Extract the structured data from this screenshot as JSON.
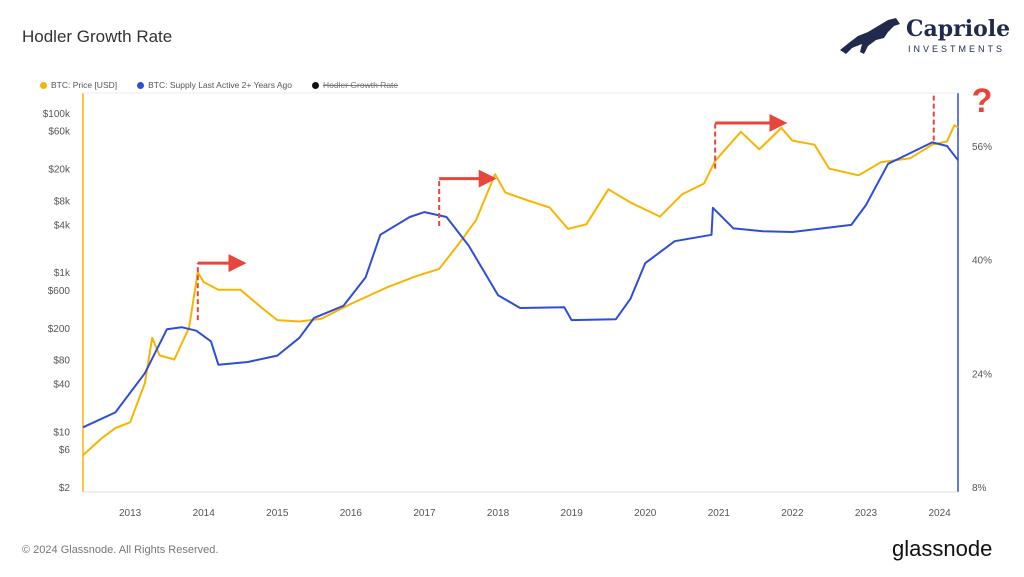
{
  "header": {
    "title": "Hodler Growth Rate"
  },
  "logo": {
    "name": "Capriole",
    "sub": "INVESTMENTS"
  },
  "footer": {
    "copyright": "© 2024 Glassnode. All Rights Reserved.",
    "brand": "glassnode"
  },
  "chart_data": {
    "type": "line",
    "title": "Hodler Growth Rate",
    "legend": {
      "placement": "top-left",
      "entries": [
        "BTC: Price [USD]",
        "BTC: Supply Last Active 2+ Years Ago",
        "Hodler Growth Rate"
      ]
    },
    "x_ticks": [
      "2013",
      "2014",
      "2015",
      "2016",
      "2017",
      "2018",
      "2019",
      "2020",
      "2021",
      "2022",
      "2023",
      "2024"
    ],
    "xlim": [
      2012.36,
      2024.25
    ],
    "y_left": {
      "scale": "log",
      "ylim": [
        2,
        100000
      ],
      "ticks": [
        {
          "v": 100000,
          "l": "$100k"
        },
        {
          "v": 60000,
          "l": "$60k"
        },
        {
          "v": 20000,
          "l": "$20k"
        },
        {
          "v": 8000,
          "l": "$8k"
        },
        {
          "v": 4000,
          "l": "$4k"
        },
        {
          "v": 1000,
          "l": "$1k"
        },
        {
          "v": 600,
          "l": "$600"
        },
        {
          "v": 200,
          "l": "$200"
        },
        {
          "v": 80,
          "l": "$80"
        },
        {
          "v": 40,
          "l": "$40"
        },
        {
          "v": 10,
          "l": "$10"
        },
        {
          "v": 6,
          "l": "$6"
        },
        {
          "v": 2,
          "l": "$2"
        }
      ]
    },
    "y_right": {
      "scale": "linear",
      "ylim": [
        8,
        60
      ],
      "ticks": [
        {
          "v": 56,
          "l": "56%"
        },
        {
          "v": 40,
          "l": "40%"
        },
        {
          "v": 24,
          "l": "24%"
        },
        {
          "v": 8,
          "l": "8%"
        }
      ]
    },
    "grid": false,
    "series": [
      {
        "name": "BTC: Price [USD]",
        "color": "#f7b500",
        "axis": "left",
        "x": [
          2012.36,
          2012.6,
          2012.8,
          2013.0,
          2013.2,
          2013.3,
          2013.4,
          2013.6,
          2013.8,
          2013.92,
          2014.0,
          2014.2,
          2014.5,
          2014.8,
          2015.0,
          2015.3,
          2015.6,
          2016.0,
          2016.5,
          2016.9,
          2017.2,
          2017.5,
          2017.7,
          2017.96,
          2018.1,
          2018.4,
          2018.7,
          2018.95,
          2019.2,
          2019.5,
          2019.8,
          2020.2,
          2020.5,
          2020.8,
          2020.95,
          2021.3,
          2021.55,
          2021.85,
          2022.0,
          2022.3,
          2022.5,
          2022.9,
          2023.2,
          2023.6,
          2023.9,
          2024.1,
          2024.2,
          2024.25
        ],
        "values": [
          5,
          8,
          11,
          13,
          40,
          150,
          90,
          80,
          200,
          1000,
          750,
          600,
          600,
          350,
          250,
          240,
          260,
          400,
          650,
          900,
          1100,
          2500,
          4500,
          17000,
          10000,
          8000,
          6500,
          3500,
          4000,
          11000,
          7500,
          5000,
          9500,
          13000,
          25000,
          58000,
          35000,
          65000,
          45000,
          40000,
          20000,
          16500,
          24000,
          27000,
          40000,
          44000,
          70000,
          66000
        ]
      },
      {
        "name": "BTC: Supply Last Active 2+ Years Ago",
        "color": "#2f4ed8",
        "axis": "right",
        "x": [
          2012.36,
          2012.8,
          2013.2,
          2013.5,
          2013.7,
          2013.9,
          2014.1,
          2014.2,
          2014.6,
          2015.0,
          2015.3,
          2015.5,
          2015.9,
          2016.2,
          2016.4,
          2016.8,
          2017.0,
          2017.3,
          2017.6,
          2018.0,
          2018.3,
          2018.9,
          2019.0,
          2019.6,
          2019.8,
          2020.0,
          2020.4,
          2020.9,
          2020.92,
          2021.2,
          2021.6,
          2022.0,
          2022.8,
          2023.0,
          2023.3,
          2023.6,
          2023.9,
          2024.1,
          2024.25
        ],
        "values": [
          16.4,
          18.5,
          24,
          30.2,
          30.5,
          30,
          28.5,
          25.2,
          25.6,
          26.5,
          29,
          31.8,
          33.5,
          37.5,
          43.5,
          46,
          46.7,
          46,
          42,
          35,
          33.2,
          33.3,
          31.5,
          31.6,
          34.5,
          39.5,
          42.6,
          43.5,
          47.3,
          44.4,
          44,
          43.9,
          44.9,
          47.7,
          53.5,
          55,
          56.5,
          56,
          54
        ]
      }
    ],
    "annotations": [
      {
        "type": "dashed-line-and-arrow",
        "x": 2013.92,
        "from": 250,
        "to": 1300,
        "arrow_to": 2014.5
      },
      {
        "type": "dashed-line-and-arrow",
        "x": 2017.2,
        "from": 3800,
        "to": 15000,
        "arrow_to": 2017.9
      },
      {
        "type": "dashed-line-and-arrow",
        "x": 2020.95,
        "from": 20000,
        "to": 75000,
        "arrow_to": 2021.85
      },
      {
        "type": "dashed-line",
        "x": 2023.92,
        "from": 45000,
        "to": 180000
      },
      {
        "type": "text",
        "label": "?",
        "color": "#e8463b"
      }
    ]
  }
}
